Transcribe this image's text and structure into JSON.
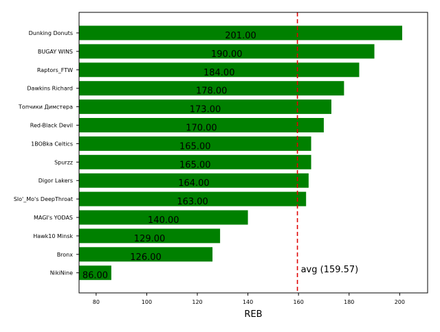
{
  "chart_data": {
    "type": "bar",
    "orientation": "horizontal",
    "categories": [
      "Dunking Donuts",
      "BUGAY WINS",
      "Raptors_FTW",
      "Dawkins Richard",
      "Топчики Димстера",
      "Red-Black Devil",
      "1BOBka Celtics",
      "Spurzz",
      "Digor Lakers",
      "Slo'_Mo's DeepThroat",
      "MAGI's YODAS",
      "Hawk10 Minsk",
      "Bronx",
      "NikiNine"
    ],
    "values": [
      201,
      190,
      184,
      178,
      173,
      170,
      165,
      165,
      164,
      163,
      140,
      129,
      126,
      86
    ],
    "value_labels": [
      "201.00",
      "190.00",
      "184.00",
      "178.00",
      "173.00",
      "170.00",
      "165.00",
      "165.00",
      "164.00",
      "163.00",
      "140.00",
      "129.00",
      "126.00",
      "86.00"
    ],
    "title": "",
    "xlabel": "REB",
    "ylabel": "",
    "xlim": [
      73.25,
      211.05
    ],
    "xticks": [
      80,
      100,
      120,
      140,
      160,
      180,
      200
    ],
    "grid": false,
    "bar_color": "#008000",
    "average": {
      "value": 159.57,
      "label": "avg (159.57)",
      "color": "#e00000"
    }
  }
}
